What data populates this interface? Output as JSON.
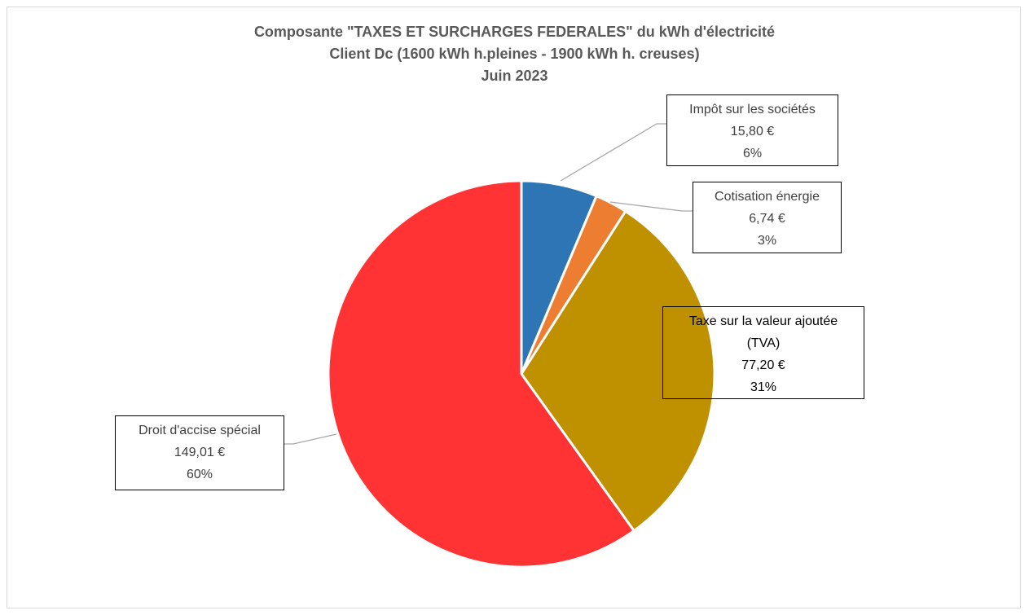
{
  "chart_data": {
    "type": "pie",
    "title": [
      "Composante \"TAXES ET SURCHARGES FEDERALES\" du kWh d'électricité",
      "Client Dc (1600 kWh h.pleines - 1900 kWh h. creuses)",
      "Juin 2023"
    ],
    "slices": [
      {
        "name": "Impôt sur les sociétés",
        "value": 15.8,
        "value_label": "15,80 €",
        "percent_label": "6%",
        "color": "#2e75b6"
      },
      {
        "name": "Cotisation énergie",
        "value": 6.74,
        "value_label": "6,74 €",
        "percent_label": "3%",
        "color": "#ed7d31"
      },
      {
        "name": [
          "Taxe sur la valeur ajoutée",
          "(TVA)"
        ],
        "value": 77.2,
        "value_label": "77,20 €",
        "percent_label": "31%",
        "color": "#bf9000"
      },
      {
        "name": "Droit d'accise spécial",
        "value": 149.01,
        "value_label": "149,01 €",
        "percent_label": "60%",
        "color": "#ff3333"
      }
    ],
    "start_angle": "12 o'clock",
    "direction": "clockwise",
    "legend": "none"
  }
}
